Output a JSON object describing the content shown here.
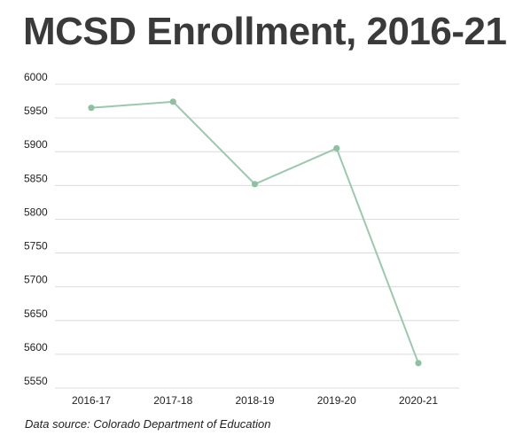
{
  "header": {
    "title": "MCSD Enrollment, 2016-21"
  },
  "footer": {
    "source": "Data source: Colorado Department of Education"
  },
  "colors": {
    "line": "#9cc8ad",
    "point": "#90c0a2",
    "grid": "#dcdcdc",
    "tick_text": "#222222"
  },
  "chart_data": {
    "type": "line",
    "title": "MCSD Enrollment, 2016-21",
    "xlabel": "",
    "ylabel": "",
    "categories": [
      "2016-17",
      "2017-18",
      "2018-19",
      "2019-20",
      "2020-21"
    ],
    "series": [
      {
        "values": [
          5965,
          5974,
          5852,
          5905,
          5587
        ]
      }
    ],
    "ylim": [
      5550,
      6000
    ],
    "yticks": [
      5550,
      5600,
      5650,
      5700,
      5750,
      5800,
      5850,
      5900,
      5950,
      6000
    ],
    "grid": true,
    "legend": "none"
  }
}
